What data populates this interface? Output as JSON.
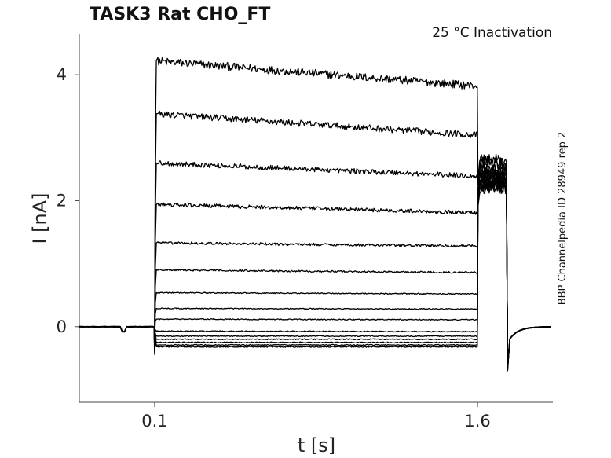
{
  "chart_data": {
    "type": "line",
    "title": "TASK3  Rat  CHO_FT",
    "annotation": "25 °C  Inactivation",
    "side_label": "BBP Channelpedia ID 28949 rep 2",
    "xlabel": "t [s]",
    "ylabel": "I [nA]",
    "xlim": [
      -0.25,
      1.95
    ],
    "ylim": [
      -1.2,
      4.65
    ],
    "x_ticks": [
      0.1,
      1.6
    ],
    "x_tick_labels": [
      "0.1",
      "1.6"
    ],
    "y_ticks": [
      0,
      2,
      4
    ],
    "y_tick_labels": [
      "0",
      "2",
      "4"
    ],
    "grid": false,
    "legend": "none",
    "step_on_s": 0.1,
    "step_off_s": 1.6,
    "tail_spike_s": 1.74,
    "series": [
      {
        "peak": 4.22,
        "steady": 3.82,
        "tail": 2.65
      },
      {
        "peak": 3.38,
        "steady": 3.04,
        "tail": 2.6
      },
      {
        "peak": 2.6,
        "steady": 2.39,
        "tail": 2.55
      },
      {
        "peak": 1.94,
        "steady": 1.81,
        "tail": 2.5
      },
      {
        "peak": 1.33,
        "steady": 1.28,
        "tail": 2.45
      },
      {
        "peak": 0.9,
        "steady": 0.86,
        "tail": 2.4
      },
      {
        "peak": 0.54,
        "steady": 0.52,
        "tail": 2.38
      },
      {
        "peak": 0.29,
        "steady": 0.28,
        "tail": 2.35
      },
      {
        "peak": 0.12,
        "steady": 0.11,
        "tail": 2.32
      },
      {
        "peak": -0.07,
        "steady": -0.08,
        "tail": 2.3
      },
      {
        "peak": -0.15,
        "steady": -0.15,
        "tail": 2.28
      },
      {
        "peak": -0.2,
        "steady": -0.2,
        "tail": 2.26
      },
      {
        "peak": -0.25,
        "steady": -0.25,
        "tail": 2.24
      },
      {
        "peak": -0.29,
        "steady": -0.29,
        "tail": 2.22
      },
      {
        "peak": -0.32,
        "steady": -0.32,
        "tail": 2.2
      }
    ]
  }
}
